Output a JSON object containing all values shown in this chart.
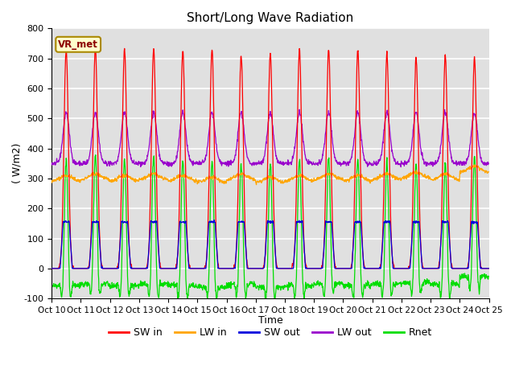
{
  "title": "Short/Long Wave Radiation",
  "xlabel": "Time",
  "ylabel": "( W/m2)",
  "xlim": [
    0,
    360
  ],
  "ylim": [
    -100,
    800
  ],
  "yticks": [
    -100,
    0,
    100,
    200,
    300,
    400,
    500,
    600,
    700,
    800
  ],
  "xtick_labels": [
    "Oct 10",
    "Oct 11",
    "Oct 12",
    "Oct 13",
    "Oct 14",
    "Oct 15",
    "Oct 16",
    "Oct 17",
    "Oct 18",
    "Oct 19",
    "Oct 20",
    "Oct 21",
    "Oct 22",
    "Oct 23",
    "Oct 24",
    "Oct 25"
  ],
  "xtick_positions": [
    0,
    24,
    48,
    72,
    96,
    120,
    144,
    168,
    192,
    216,
    240,
    264,
    288,
    312,
    336,
    360
  ],
  "sw_in_color": "#ff0000",
  "lw_in_color": "#ffa500",
  "sw_out_color": "#0000dd",
  "lw_out_color": "#9900cc",
  "rnet_color": "#00dd00",
  "n_days": 15,
  "hours_per_day": 24,
  "vr_met_label": "VR_met",
  "plot_bg_color": "#e0e0e0",
  "fig_bg_color": "#ffffff",
  "grid_color": "#ffffff",
  "legend_labels": [
    "SW in",
    "LW in",
    "SW out",
    "LW out",
    "Rnet"
  ],
  "sw_peaks": [
    730,
    735,
    730,
    730,
    730,
    730,
    710,
    720,
    730,
    730,
    730,
    715,
    705,
    710,
    700
  ],
  "lw_in_base": [
    290,
    295,
    290,
    295,
    290,
    285,
    295,
    285,
    290,
    295,
    290,
    295,
    300,
    295,
    320
  ],
  "lw_out_night": 350,
  "lw_out_day_peak": 520,
  "sw_out_peak": 155,
  "rnet_night": -75
}
